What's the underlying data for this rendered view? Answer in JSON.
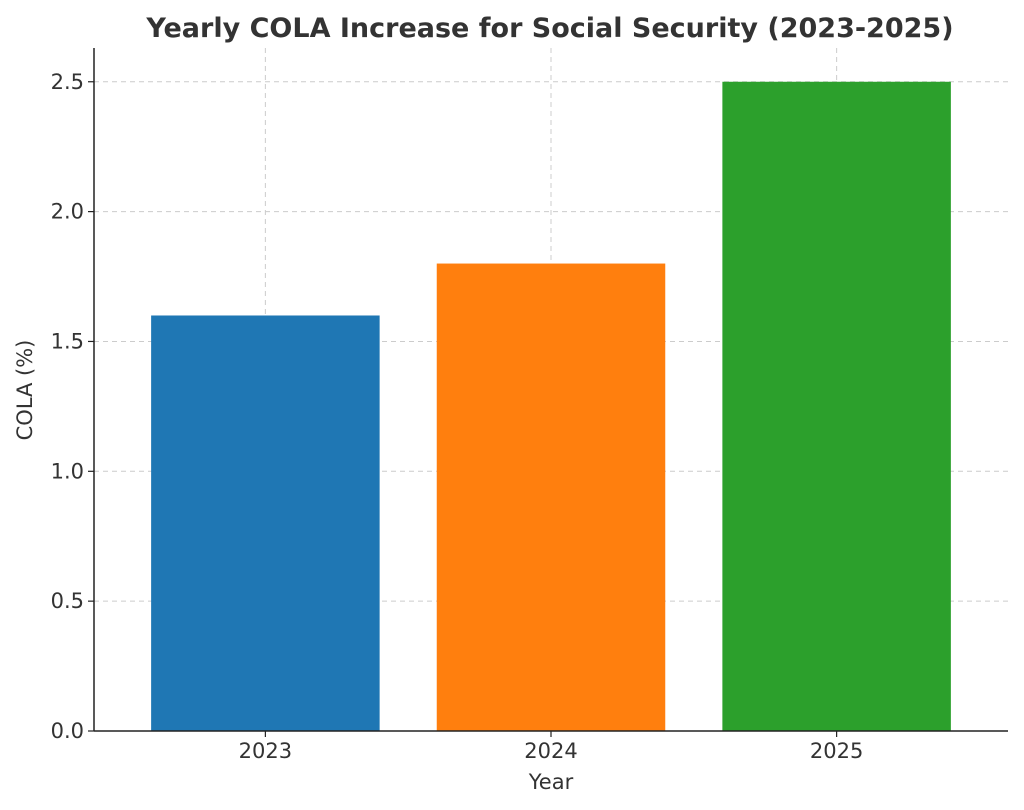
{
  "chart_data": {
    "type": "bar",
    "title": "Yearly COLA Increase for Social Security (2023-2025)",
    "xlabel": "Year",
    "ylabel": "COLA (%)",
    "categories": [
      "2023",
      "2024",
      "2025"
    ],
    "values": [
      1.6,
      1.8,
      2.5
    ],
    "colors": [
      "#1f77b4",
      "#ff7f0e",
      "#2ca02c"
    ],
    "ylim": [
      0,
      2.63
    ],
    "yticks": [
      "0.0",
      "0.5",
      "1.0",
      "1.5",
      "2.0",
      "2.5"
    ],
    "grid": true,
    "legend": "none"
  }
}
